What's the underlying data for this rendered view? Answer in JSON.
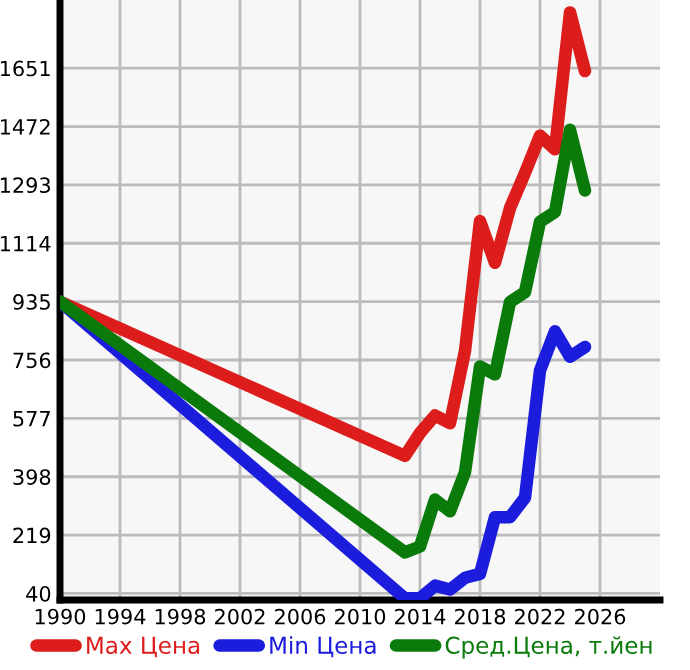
{
  "chart_data": {
    "type": "line",
    "xlim": [
      1990,
      2030
    ],
    "xticks": [
      1990,
      1994,
      1998,
      2002,
      2006,
      2010,
      2014,
      2018,
      2022,
      2026
    ],
    "ylim": [
      20,
      1860
    ],
    "yticks": [
      40,
      219,
      398,
      577,
      756,
      935,
      1114,
      1293,
      1472,
      1651
    ],
    "grid": true,
    "legend": "bottom",
    "marker": "none",
    "line_style": "solid",
    "series": [
      {
        "name": "Max Цена",
        "color": "#dd1c1c",
        "x": [
          1990,
          2013,
          2014,
          2015,
          2016,
          2017,
          2018,
          2019,
          2020,
          2021,
          2022,
          2023,
          2024,
          2025
        ],
        "values": [
          935,
          462,
          532,
          586,
          562,
          784,
          1182,
          1054,
          1222,
          1330,
          1444,
          1402,
          1822,
          1642
        ]
      },
      {
        "name": "Min Цена",
        "color": "#1c1cdd",
        "x": [
          1990,
          2013,
          2014,
          2015,
          2016,
          2017,
          2018,
          2019,
          2020,
          2021,
          2022,
          2023,
          2024,
          2025
        ],
        "values": [
          935,
          25,
          25,
          64,
          52,
          88,
          100,
          274,
          274,
          334,
          724,
          844,
          766,
          796
        ]
      },
      {
        "name": "Сред.Цена, т.йен",
        "color": "#0a7a0a",
        "x": [
          1990,
          2013,
          2014,
          2015,
          2016,
          2017,
          2018,
          2019,
          2020,
          2021,
          2022,
          2023,
          2024,
          2025
        ],
        "values": [
          935,
          166,
          184,
          328,
          292,
          412,
          736,
          712,
          934,
          964,
          1180,
          1210,
          1462,
          1276
        ]
      }
    ]
  }
}
